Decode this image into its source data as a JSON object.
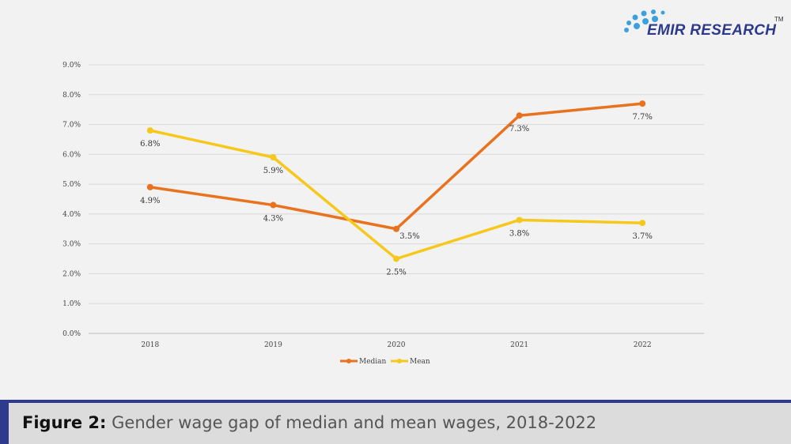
{
  "logo": {
    "text": "EMIR RESEARCH",
    "tm": "TM"
  },
  "caption": {
    "label": "Figure 2:",
    "text": "Gender wage gap of median and mean wages, 2018-2022"
  },
  "colors": {
    "median": "#E8721E",
    "mean": "#F6C81C",
    "grid": "#d9d9d9"
  },
  "chart_data": {
    "type": "line",
    "title": "",
    "categories": [
      "2018",
      "2019",
      "2020",
      "2021",
      "2022"
    ],
    "series": [
      {
        "name": "Median",
        "values": [
          4.9,
          4.3,
          3.5,
          7.3,
          7.7
        ],
        "labels": [
          "4.9%",
          "4.3%",
          "3.5%",
          "7.3%",
          "7.7%"
        ]
      },
      {
        "name": "Mean",
        "values": [
          6.8,
          5.9,
          2.5,
          3.8,
          3.7
        ],
        "labels": [
          "6.8%",
          "5.9%",
          "2.5%",
          "3.8%",
          "3.7%"
        ]
      }
    ],
    "ylim": [
      0,
      9
    ],
    "yticks": [
      "0.0%",
      "1.0%",
      "2.0%",
      "3.0%",
      "4.0%",
      "5.0%",
      "6.0%",
      "7.0%",
      "8.0%",
      "9.0%"
    ],
    "grid": true,
    "legend": "bottom"
  }
}
